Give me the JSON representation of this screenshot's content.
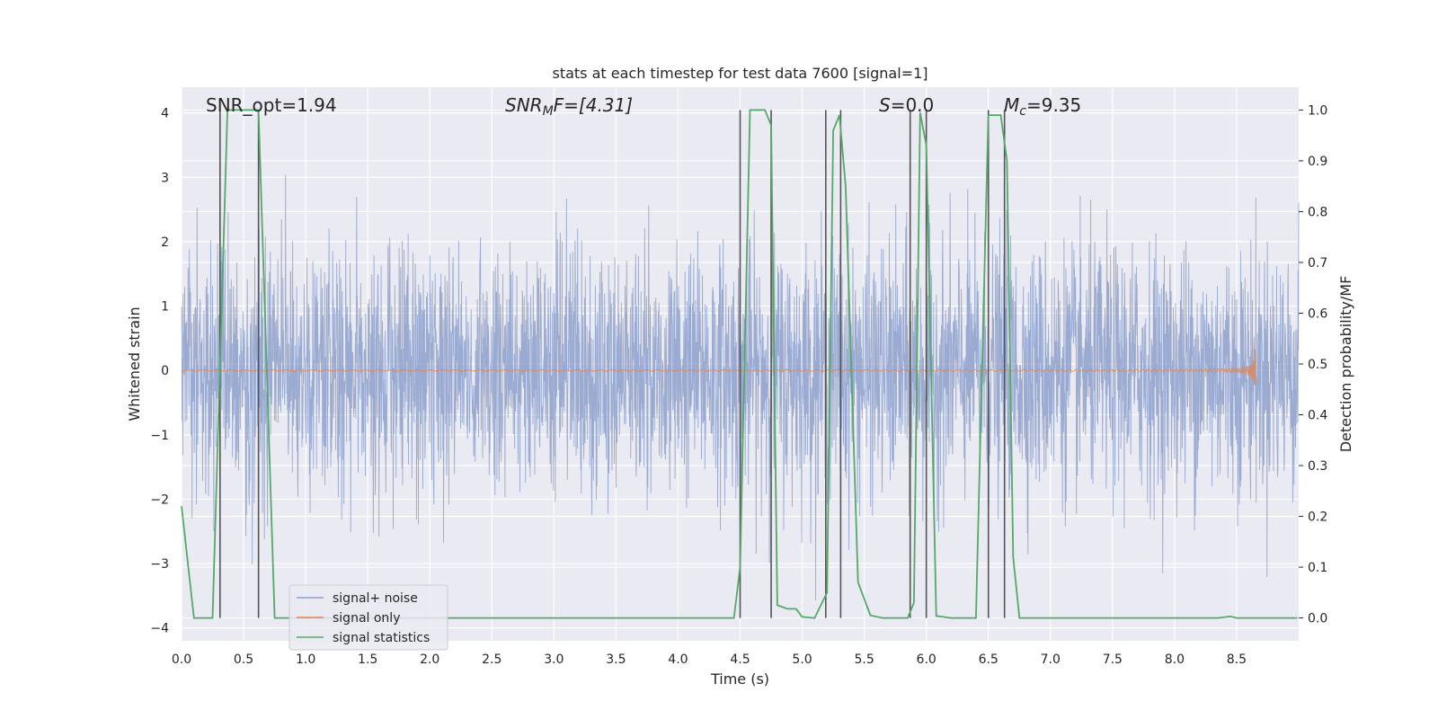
{
  "chart_data": {
    "type": "line",
    "title": "stats at each timestep for test data 7600 [signal=1]",
    "xlabel": "Time (s)",
    "ylabel": "Whitened strain",
    "ylabel_right": "Detection probability/MF",
    "xlim": [
      0,
      9
    ],
    "ylim": [
      -4.2,
      4.4
    ],
    "ylim_right": [
      -0.045,
      1.045
    ],
    "xticks": [
      "0.0",
      "0.5",
      "1.0",
      "1.5",
      "2.0",
      "2.5",
      "3.0",
      "3.5",
      "4.0",
      "4.5",
      "5.0",
      "5.5",
      "6.0",
      "6.5",
      "7.0",
      "7.5",
      "8.0",
      "8.5"
    ],
    "yticks": [
      "4",
      "3",
      "2",
      "1",
      "0",
      "−1",
      "−2",
      "−3",
      "−4"
    ],
    "yticks_right": [
      "1.0",
      "0.9",
      "0.8",
      "0.7",
      "0.6",
      "0.5",
      "0.4",
      "0.3",
      "0.2",
      "0.1",
      "0.0"
    ],
    "grid": true,
    "legend_position": "lower-left",
    "annotations": {
      "snr_opt": "SNR_opt=1.94",
      "snr_mf_sym": "SNR",
      "snr_mf_sub": "M",
      "snr_mf_rest": "F=[4.31]",
      "s_sym": "S",
      "s_rest": "=0.0",
      "mc_sym": "M",
      "mc_sub": "c",
      "mc_rest": "=9.35"
    },
    "series": [
      {
        "name": "signal+ noise",
        "color": "#8c9fcb",
        "kind": "noise",
        "envelope_note": "dense noise roughly within ±2.5, occasional peaks to ±4"
      },
      {
        "name": "signal only",
        "color": "#dd8452",
        "kind": "chirp",
        "x_end": 8.65,
        "max_amplitude": 0.35
      },
      {
        "name": "signal statistics",
        "color": "#55a868",
        "axis": "right",
        "x": [
          0.0,
          0.1,
          0.25,
          0.37,
          0.62,
          0.75,
          4.25,
          4.45,
          4.5,
          4.58,
          4.7,
          4.75,
          4.8,
          4.88,
          4.95,
          5.0,
          5.1,
          5.2,
          5.25,
          5.3,
          5.35,
          5.45,
          5.55,
          5.65,
          5.75,
          5.85,
          5.9,
          5.95,
          6.0,
          6.08,
          6.2,
          6.4,
          6.45,
          6.5,
          6.6,
          6.65,
          6.7,
          6.75,
          8.35,
          8.45,
          8.5,
          8.6,
          8.99
        ],
        "y": [
          0.22,
          0.0,
          0.0,
          1.0,
          1.0,
          0.0,
          0.0,
          0.0,
          0.1,
          1.0,
          1.0,
          0.97,
          0.025,
          0.018,
          0.018,
          0.002,
          0.0,
          0.05,
          0.96,
          0.99,
          0.85,
          0.07,
          0.005,
          0.0,
          0.0,
          0.0,
          0.03,
          0.995,
          0.93,
          0.004,
          0.0,
          0.0,
          0.5,
          0.99,
          0.99,
          0.9,
          0.12,
          0.0,
          0.0,
          0.003,
          0.0,
          0.0,
          0.0
        ]
      }
    ],
    "vlines": [
      0.31,
      0.62,
      4.5,
      4.75,
      5.19,
      5.31,
      5.87,
      6.0,
      6.5,
      6.63
    ]
  }
}
